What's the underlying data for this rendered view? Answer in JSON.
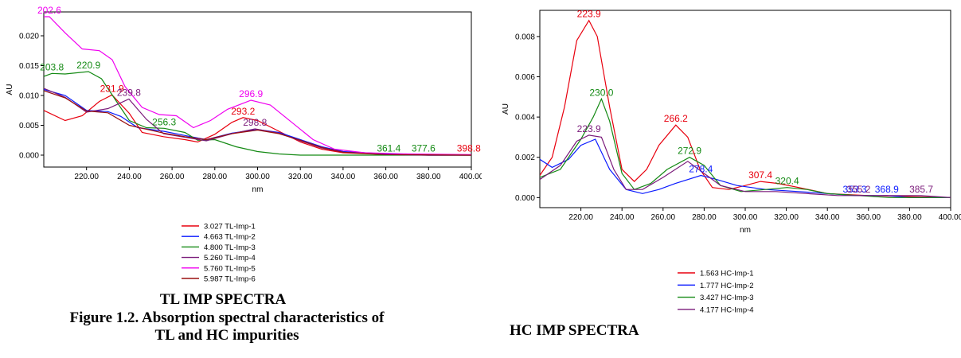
{
  "chart_data": [
    {
      "type": "line",
      "title": "TL IMP SPECTRA",
      "xlabel": "nm",
      "ylabel": "AU",
      "xlim": [
        200,
        400
      ],
      "ylim": [
        -0.002,
        0.024
      ],
      "xticks": [
        "220.00",
        "240.00",
        "260.00",
        "280.00",
        "300.00",
        "320.00",
        "340.00",
        "360.00",
        "380.00",
        "400.00"
      ],
      "yticks": [
        "0.000",
        "0.005",
        "0.010",
        "0.015",
        "0.020"
      ],
      "legend_position": "bottom",
      "series": [
        {
          "name": "3.027 TL-Imp-1",
          "color": "#e8000e",
          "points": [
            [
              200,
              0.0075
            ],
            [
              210,
              0.0058
            ],
            [
              218,
              0.0066
            ],
            [
              226,
              0.009
            ],
            [
              231.9,
              0.0101
            ],
            [
              240,
              0.007
            ],
            [
              246,
              0.0038
            ],
            [
              256,
              0.0031
            ],
            [
              266,
              0.0026
            ],
            [
              272,
              0.0022
            ],
            [
              280,
              0.0035
            ],
            [
              288,
              0.0055
            ],
            [
              293.2,
              0.0063
            ],
            [
              300,
              0.0058
            ],
            [
              310,
              0.004
            ],
            [
              320,
              0.0022
            ],
            [
              330,
              0.001
            ],
            [
              340,
              0.0004
            ],
            [
              360,
              0.0001
            ],
            [
              380,
              0.0
            ],
            [
              400,
              0.0
            ]
          ]
        },
        {
          "name": "4.663 TL-Imp-2",
          "color": "#0a1aff",
          "points": [
            [
              200,
              0.011
            ],
            [
              210,
              0.01
            ],
            [
              220,
              0.0075
            ],
            [
              230,
              0.0073
            ],
            [
              236,
              0.0065
            ],
            [
              244,
              0.0046
            ],
            [
              256,
              0.004
            ],
            [
              266,
              0.0033
            ],
            [
              276,
              0.0026
            ],
            [
              288,
              0.0037
            ],
            [
              300,
              0.0043
            ],
            [
              310,
              0.0038
            ],
            [
              320,
              0.0026
            ],
            [
              330,
              0.0014
            ],
            [
              340,
              0.0006
            ],
            [
              360,
              0.0002
            ],
            [
              380,
              0.0
            ],
            [
              400,
              0.0
            ]
          ]
        },
        {
          "name": "4.800 TL-Imp-3",
          "color": "#148a14",
          "points": [
            [
              200,
              0.0132
            ],
            [
              203.8,
              0.0137
            ],
            [
              210,
              0.0136
            ],
            [
              220.9,
              0.014
            ],
            [
              227,
              0.0128
            ],
            [
              234,
              0.009
            ],
            [
              240,
              0.0058
            ],
            [
              248,
              0.0046
            ],
            [
              256.3,
              0.0045
            ],
            [
              266,
              0.0038
            ],
            [
              272,
              0.0025
            ],
            [
              280,
              0.0026
            ],
            [
              290,
              0.0014
            ],
            [
              300,
              0.0006
            ],
            [
              310,
              0.0002
            ],
            [
              320,
              0.0
            ],
            [
              361.4,
              0.0
            ],
            [
              377.6,
              0.0
            ],
            [
              400,
              0.0
            ]
          ]
        },
        {
          "name": "5.260 TL-Imp-4",
          "color": "#7a1a7a",
          "points": [
            [
              200,
              0.0112
            ],
            [
              210,
              0.0097
            ],
            [
              220,
              0.0072
            ],
            [
              230,
              0.0078
            ],
            [
              239.8,
              0.0094
            ],
            [
              248,
              0.006
            ],
            [
              256,
              0.0036
            ],
            [
              266,
              0.003
            ],
            [
              276,
              0.0024
            ],
            [
              288,
              0.0036
            ],
            [
              298.8,
              0.0044
            ],
            [
              310,
              0.0037
            ],
            [
              320,
              0.0024
            ],
            [
              330,
              0.0012
            ],
            [
              340,
              0.0005
            ],
            [
              360,
              0.0001
            ],
            [
              380,
              0.0
            ],
            [
              400,
              0.0
            ]
          ]
        },
        {
          "name": "5.760 TL-Imp-5",
          "color": "#f000f0",
          "points": [
            [
              200,
              0.0232
            ],
            [
              202.6,
              0.0232
            ],
            [
              210,
              0.0205
            ],
            [
              218,
              0.0178
            ],
            [
              226,
              0.0175
            ],
            [
              232,
              0.016
            ],
            [
              238,
              0.0115
            ],
            [
              246,
              0.008
            ],
            [
              254,
              0.0068
            ],
            [
              262,
              0.0066
            ],
            [
              270,
              0.0046
            ],
            [
              278,
              0.0058
            ],
            [
              286,
              0.0077
            ],
            [
              296.9,
              0.0092
            ],
            [
              306,
              0.0084
            ],
            [
              316,
              0.0055
            ],
            [
              326,
              0.0026
            ],
            [
              336,
              0.001
            ],
            [
              350,
              0.0004
            ],
            [
              370,
              0.0002
            ],
            [
              400,
              0.0001
            ]
          ]
        },
        {
          "name": "5.987 TL-Imp-6",
          "color": "#9a1010",
          "points": [
            [
              200,
              0.0108
            ],
            [
              210,
              0.0096
            ],
            [
              220,
              0.0074
            ],
            [
              230,
              0.0071
            ],
            [
              240,
              0.005
            ],
            [
              256,
              0.0037
            ],
            [
              266,
              0.0031
            ],
            [
              276,
              0.0026
            ],
            [
              288,
              0.0036
            ],
            [
              300,
              0.0042
            ],
            [
              310,
              0.0036
            ],
            [
              320,
              0.0025
            ],
            [
              330,
              0.0013
            ],
            [
              340,
              0.0005
            ],
            [
              360,
              0.0001
            ],
            [
              398.8,
              0.0
            ],
            [
              400,
              0.0
            ]
          ]
        }
      ],
      "annotations": [
        {
          "text": "202.6",
          "x": 202.6,
          "y": 0.0232,
          "color": "#f000f0"
        },
        {
          "text": "203.8",
          "x": 203.8,
          "y": 0.0137,
          "color": "#148a14"
        },
        {
          "text": "220.9",
          "x": 220.9,
          "y": 0.014,
          "color": "#148a14"
        },
        {
          "text": "231.9",
          "x": 231.9,
          "y": 0.0101,
          "color": "#e8000e"
        },
        {
          "text": "239.8",
          "x": 239.8,
          "y": 0.0094,
          "color": "#7a1a7a"
        },
        {
          "text": "256.3",
          "x": 256.3,
          "y": 0.0045,
          "color": "#148a14"
        },
        {
          "text": "293.2",
          "x": 293.2,
          "y": 0.0063,
          "color": "#e8000e"
        },
        {
          "text": "296.9",
          "x": 296.9,
          "y": 0.0092,
          "color": "#f000f0"
        },
        {
          "text": "298.8",
          "x": 298.8,
          "y": 0.0044,
          "color": "#7a1a7a"
        },
        {
          "text": "361.4",
          "x": 361.4,
          "y": 0.0001,
          "color": "#148a14"
        },
        {
          "text": "377.6",
          "x": 377.6,
          "y": 0.0001,
          "color": "#148a14"
        },
        {
          "text": "398.8",
          "x": 398.8,
          "y": 0.0001,
          "color": "#e8000e"
        }
      ]
    },
    {
      "type": "line",
      "title": "HC IMP SPECTRA",
      "xlabel": "nm",
      "ylabel": "AU",
      "xlim": [
        200,
        400
      ],
      "ylim": [
        -0.0005,
        0.0093
      ],
      "xticks": [
        "220.00",
        "240.00",
        "260.00",
        "280.00",
        "300.00",
        "320.00",
        "340.00",
        "360.00",
        "380.00",
        "400.00"
      ],
      "yticks": [
        "0.000",
        "0.002",
        "0.004",
        "0.006",
        "0.008"
      ],
      "legend_position": "bottom",
      "series": [
        {
          "name": "1.563 HC-Imp-1",
          "color": "#e8000e",
          "points": [
            [
              200,
              0.0011
            ],
            [
              206,
              0.002
            ],
            [
              212,
              0.0045
            ],
            [
              218,
              0.0078
            ],
            [
              223.9,
              0.0088
            ],
            [
              228,
              0.008
            ],
            [
              234,
              0.0045
            ],
            [
              240,
              0.0014
            ],
            [
              246,
              0.0008
            ],
            [
              252,
              0.0014
            ],
            [
              258,
              0.0026
            ],
            [
              266.2,
              0.0036
            ],
            [
              272,
              0.003
            ],
            [
              278,
              0.0014
            ],
            [
              284,
              0.0005
            ],
            [
              292,
              0.0004
            ],
            [
              300,
              0.0006
            ],
            [
              307.4,
              0.0008
            ],
            [
              316,
              0.0007
            ],
            [
              326,
              0.0005
            ],
            [
              340,
              0.0002
            ],
            [
              360,
              0.0001
            ],
            [
              400,
              0.0
            ]
          ]
        },
        {
          "name": "1.777 HC-Imp-2",
          "color": "#0a1aff",
          "points": [
            [
              200,
              0.0019
            ],
            [
              206,
              0.0015
            ],
            [
              214,
              0.0019
            ],
            [
              220,
              0.0026
            ],
            [
              227,
              0.0029
            ],
            [
              234,
              0.0014
            ],
            [
              242,
              0.0004
            ],
            [
              250,
              0.0002
            ],
            [
              258,
              0.0004
            ],
            [
              266,
              0.0007
            ],
            [
              278.4,
              0.0011
            ],
            [
              286,
              0.0009
            ],
            [
              296,
              0.0006
            ],
            [
              310,
              0.0004
            ],
            [
              326,
              0.0003
            ],
            [
              340,
              0.0002
            ],
            [
              353.3,
              0.0001
            ],
            [
              368.9,
              0.0001
            ],
            [
              380,
              0.0
            ],
            [
              400,
              0.0
            ]
          ]
        },
        {
          "name": "3.427 HC-Imp-3",
          "color": "#148a14",
          "points": [
            [
              200,
              0.001
            ],
            [
              210,
              0.0014
            ],
            [
              220,
              0.0029
            ],
            [
              226,
              0.004
            ],
            [
              230.0,
              0.0049
            ],
            [
              234,
              0.0038
            ],
            [
              240,
              0.0012
            ],
            [
              246,
              0.0004
            ],
            [
              254,
              0.0007
            ],
            [
              262,
              0.0014
            ],
            [
              272.9,
              0.002
            ],
            [
              280,
              0.0016
            ],
            [
              288,
              0.0006
            ],
            [
              298,
              0.0003
            ],
            [
              310,
              0.0004
            ],
            [
              320.4,
              0.0005
            ],
            [
              330,
              0.0004
            ],
            [
              340,
              0.0002
            ],
            [
              355.2,
              0.0001
            ],
            [
              370,
              0.0
            ],
            [
              400,
              0.0
            ]
          ]
        },
        {
          "name": "4.177 HC-Imp-4",
          "color": "#7a1a7a",
          "points": [
            [
              200,
              0.0009
            ],
            [
              210,
              0.0016
            ],
            [
              218,
              0.0028
            ],
            [
              223.9,
              0.0031
            ],
            [
              230,
              0.003
            ],
            [
              236,
              0.0014
            ],
            [
              242,
              0.0004
            ],
            [
              250,
              0.0004
            ],
            [
              260,
              0.001
            ],
            [
              272,
              0.0018
            ],
            [
              280,
              0.0012
            ],
            [
              288,
              0.0006
            ],
            [
              300,
              0.0003
            ],
            [
              315,
              0.0003
            ],
            [
              330,
              0.0002
            ],
            [
              345,
              0.0001
            ],
            [
              385.7,
              0.0001
            ],
            [
              400,
              0.0
            ]
          ]
        }
      ],
      "annotations": [
        {
          "text": "223.9",
          "x": 223.9,
          "y": 0.0088,
          "color": "#e8000e"
        },
        {
          "text": "230.0",
          "x": 230.0,
          "y": 0.0049,
          "color": "#148a14"
        },
        {
          "text": "223.9",
          "x": 223.9,
          "y": 0.0031,
          "color": "#7a1a7a"
        },
        {
          "text": "266.2",
          "x": 266.2,
          "y": 0.0036,
          "color": "#e8000e"
        },
        {
          "text": "272.9",
          "x": 272.9,
          "y": 0.002,
          "color": "#148a14"
        },
        {
          "text": "278.4",
          "x": 278.4,
          "y": 0.0011,
          "color": "#0a1aff"
        },
        {
          "text": "307.4",
          "x": 307.4,
          "y": 0.0008,
          "color": "#e8000e"
        },
        {
          "text": "320.4",
          "x": 320.4,
          "y": 0.0005,
          "color": "#148a14"
        },
        {
          "text": "353.3",
          "x": 353.3,
          "y": 0.0001,
          "color": "#0a1aff"
        },
        {
          "text": "355.2",
          "x": 355.2,
          "y": 0.0001,
          "color": "#7a1a7a"
        },
        {
          "text": "368.9",
          "x": 368.9,
          "y": 0.0001,
          "color": "#0a1aff"
        },
        {
          "text": "385.7",
          "x": 385.7,
          "y": 0.0001,
          "color": "#7a1a7a"
        }
      ]
    }
  ],
  "captions": {
    "left_title": "TL IMP SPECTRA",
    "figure_caption_line1": "Figure 1.2. Absorption spectral characteristics of",
    "figure_caption_line2": "TL and HC impurities",
    "right_title": "HC IMP SPECTRA"
  }
}
